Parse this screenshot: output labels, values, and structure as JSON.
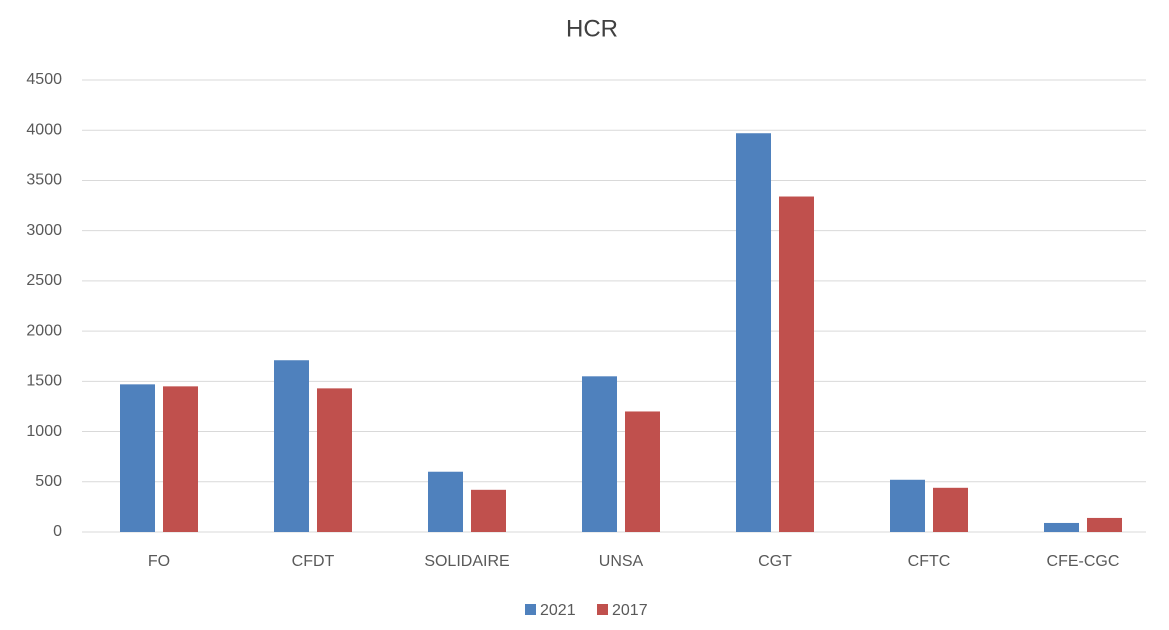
{
  "chart_data": {
    "type": "bar",
    "title": "HCR",
    "categories": [
      "FO",
      "CFDT",
      "SOLIDAIRE",
      "UNSA",
      "CGT",
      "CFTC",
      "CFE-CGC"
    ],
    "series": [
      {
        "name": "2021",
        "color": "#4f81bd",
        "values": [
          1470,
          1710,
          600,
          1550,
          3970,
          520,
          90
        ]
      },
      {
        "name": "2017",
        "color": "#c0504d",
        "values": [
          1450,
          1430,
          420,
          1200,
          3340,
          440,
          140
        ]
      }
    ],
    "ylim": [
      0,
      4500
    ],
    "yticks": [
      0,
      500,
      1000,
      1500,
      2000,
      2500,
      3000,
      3500,
      4000,
      4500
    ],
    "grid": true,
    "legend": "bottom"
  }
}
